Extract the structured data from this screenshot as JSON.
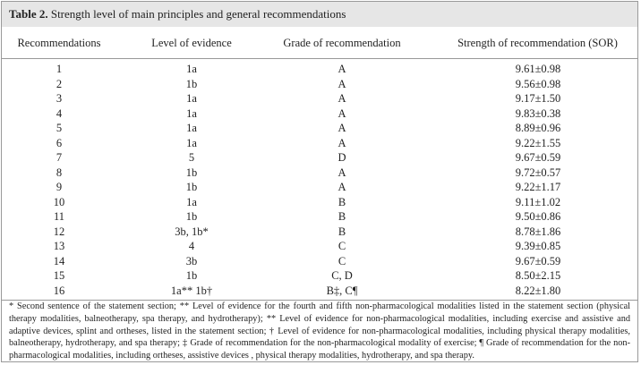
{
  "caption": {
    "label": "Table 2.",
    "text": "Strength level of main principles and general recommendations"
  },
  "table": {
    "header": [
      "Recommendations",
      "Level of evidence",
      "Grade of recommendation",
      "Strength of recommendation (SOR)"
    ],
    "rows": [
      [
        "1",
        "1a",
        "A",
        "9.61±0.98"
      ],
      [
        "2",
        "1b",
        "A",
        "9.56±0.98"
      ],
      [
        "3",
        "1a",
        "A",
        "9.17±1.50"
      ],
      [
        "4",
        "1a",
        "A",
        "9.83±0.38"
      ],
      [
        "5",
        "1a",
        "A",
        "8.89±0.96"
      ],
      [
        "6",
        "1a",
        "A",
        "9.22±1.55"
      ],
      [
        "7",
        "5",
        "D",
        "9.67±0.59"
      ],
      [
        "8",
        "1b",
        "A",
        "9.72±0.57"
      ],
      [
        "9",
        "1b",
        "A",
        "9.22±1.17"
      ],
      [
        "10",
        "1a",
        "B",
        "9.11±1.02"
      ],
      [
        "11",
        "1b",
        "B",
        "9.50±0.86"
      ],
      [
        "12",
        "3b, 1b*",
        "B",
        "8.78±1.86"
      ],
      [
        "13",
        "4",
        "C",
        "9.39±0.85"
      ],
      [
        "14",
        "3b",
        "C",
        "9.67±0.59"
      ],
      [
        "15",
        "1b",
        "C, D",
        "8.50±2.15"
      ],
      [
        "16",
        "1a** 1b†",
        "B‡, C¶",
        "8.22±1.80"
      ]
    ]
  },
  "footnote": "* Second sentence of the statement section; ** Level of evidence for the fourth and fifth non-pharmacological modalities listed in the statement section (physical therapy modalities, balneotherapy, spa therapy, and hydrotherapy); ** Level of evidence for non-pharmacological modalities, including exercise and assistive and adaptive devices, splint and ortheses, listed in the statement section; † Level of evidence for non-pharmacological modalities, including physical therapy modalities, balneotherapy, hydrotherapy, and spa therapy; ‡ Grade of recommendation for the non-pharmacological modality of exercise; ¶ Grade of recommendation for the non-pharmacological modalities, including ortheses, assistive devices , physical therapy modalities, hydrotherapy, and spa therapy."
}
